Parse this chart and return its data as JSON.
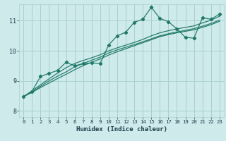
{
  "xlabel": "Humidex (Indice chaleur)",
  "xlim": [
    -0.5,
    23.5
  ],
  "ylim": [
    7.8,
    11.55
  ],
  "yticks": [
    8,
    9,
    10,
    11
  ],
  "xticks": [
    0,
    1,
    2,
    3,
    4,
    5,
    6,
    7,
    8,
    9,
    10,
    11,
    12,
    13,
    14,
    15,
    16,
    17,
    18,
    19,
    20,
    21,
    22,
    23
  ],
  "bg_color": "#ceeaea",
  "grid_color": "#a8d0d0",
  "line_color": "#1e7868",
  "data_x": [
    0,
    1,
    2,
    3,
    4,
    5,
    6,
    7,
    8,
    9,
    10,
    11,
    12,
    13,
    14,
    15,
    16,
    17,
    18,
    19,
    20,
    21,
    22,
    23
  ],
  "data_y_main": [
    8.48,
    8.65,
    9.15,
    9.25,
    9.35,
    9.62,
    9.5,
    9.58,
    9.6,
    9.58,
    10.2,
    10.5,
    10.62,
    10.95,
    11.05,
    11.45,
    11.08,
    10.97,
    10.73,
    10.45,
    10.42,
    11.1,
    11.05,
    11.22
  ],
  "data_y_reg1": [
    8.48,
    8.62,
    8.78,
    8.93,
    9.08,
    9.22,
    9.37,
    9.51,
    9.62,
    9.73,
    9.86,
    9.97,
    10.07,
    10.17,
    10.27,
    10.37,
    10.47,
    10.54,
    10.6,
    10.65,
    10.7,
    10.78,
    10.87,
    10.98
  ],
  "data_y_reg2": [
    8.48,
    8.63,
    8.82,
    9.0,
    9.16,
    9.3,
    9.47,
    9.58,
    9.69,
    9.79,
    9.93,
    10.03,
    10.12,
    10.21,
    10.3,
    10.4,
    10.5,
    10.57,
    10.63,
    10.68,
    10.74,
    10.82,
    10.91,
    11.02
  ],
  "data_y_reg3": [
    8.48,
    8.67,
    8.87,
    9.07,
    9.26,
    9.44,
    9.58,
    9.68,
    9.77,
    9.87,
    10.0,
    10.1,
    10.19,
    10.28,
    10.38,
    10.5,
    10.6,
    10.67,
    10.73,
    10.78,
    10.83,
    10.93,
    11.02,
    11.15
  ]
}
